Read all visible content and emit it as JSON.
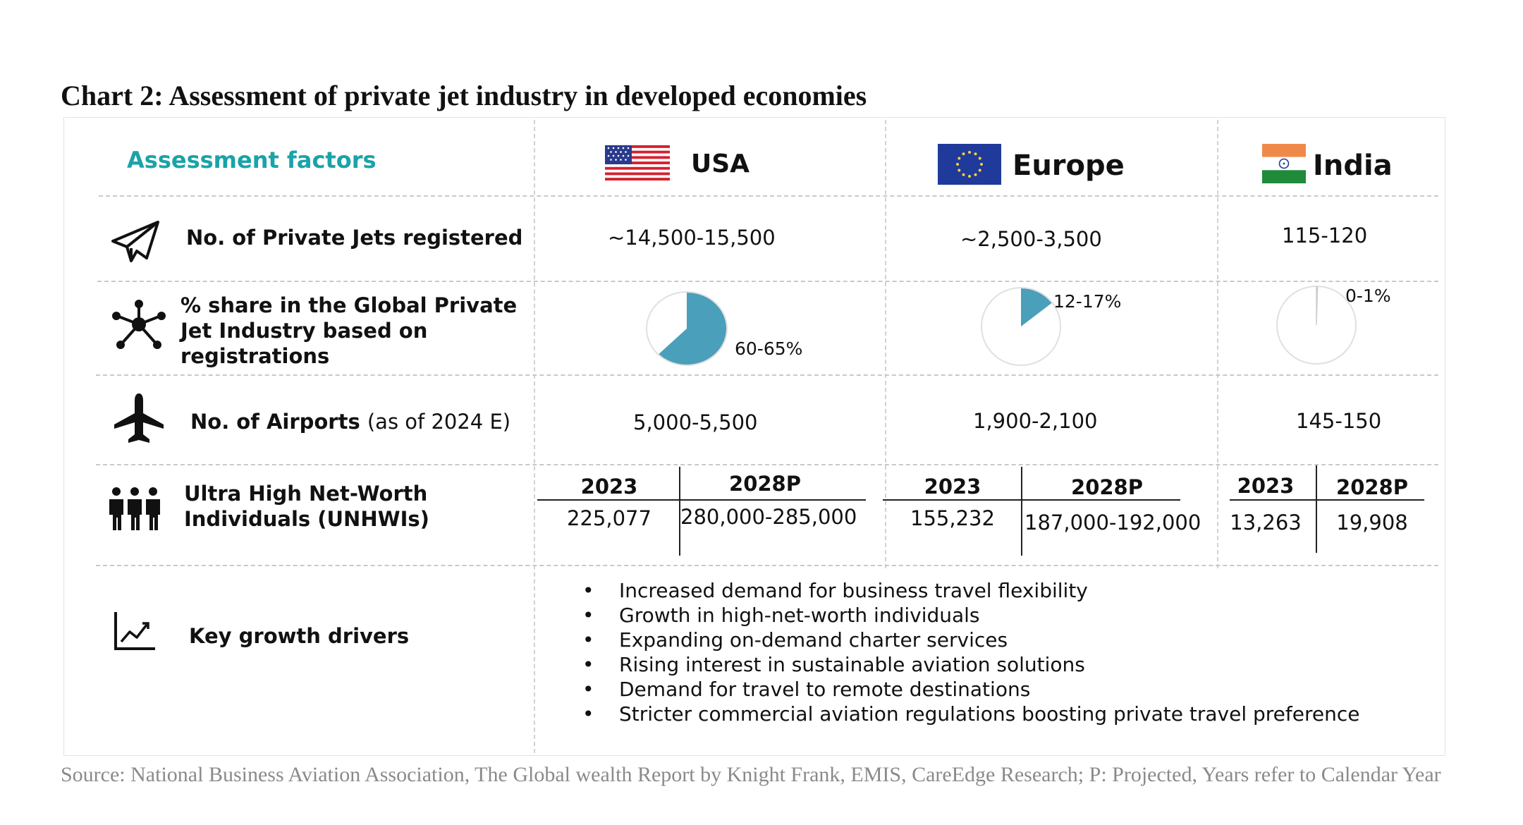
{
  "title": "Chart 2: Assessment of private jet industry in developed economies",
  "header": {
    "factors_label": "Assessment factors",
    "countries": [
      {
        "name": "USA",
        "flag": "us-flag-icon"
      },
      {
        "name": "Europe",
        "flag": "eu-flag-icon"
      },
      {
        "name": "India",
        "flag": "india-flag-icon"
      }
    ]
  },
  "rows": {
    "jets": {
      "icon": "paper-plane-icon",
      "label": "No. of Private Jets registered",
      "values": [
        "~14,500-15,500",
        "~2,500-3,500",
        "115-120"
      ]
    },
    "share": {
      "icon": "network-nodes-icon",
      "label": "% share in the Global Private Jet Industry based on registrations",
      "values": [
        "60-65%",
        "12-17%",
        "0-1%"
      ],
      "pie_fraction": [
        0.625,
        0.145,
        0.005
      ],
      "pie_color": "#4a9fba"
    },
    "airports": {
      "icon": "airplane-icon",
      "label": "No. of Airports",
      "label_note": "(as of 2024 E)",
      "values": [
        "5,000-5,500",
        "1,900-2,100",
        "145-150"
      ]
    },
    "unhwi": {
      "icon": "people-group-icon",
      "label": "Ultra High Net-Worth Individuals (UNHWIs)",
      "years": [
        "2023",
        "2028P"
      ],
      "values": [
        [
          "225,077",
          "280,000-285,000"
        ],
        [
          "155,232",
          "187,000-192,000"
        ],
        [
          "13,263",
          "19,908"
        ]
      ]
    },
    "drivers": {
      "icon": "growth-chart-icon",
      "label": "Key growth drivers",
      "items": [
        "Increased demand for business travel flexibility",
        "Growth in high-net-worth individuals",
        "Expanding on-demand charter services",
        "Rising interest in sustainable aviation solutions",
        "Demand for travel to remote destinations",
        "Stricter commercial aviation regulations boosting private travel preference"
      ]
    }
  },
  "source": "Source: National Business Aviation Association, The Global wealth Report by Knight Frank, EMIS, CareEdge Research; P: Projected, Years refer to Calendar Year",
  "colors": {
    "accent": "#1aa3a8",
    "pie": "#4a9fba",
    "pie_outline": "#e0e0e0"
  }
}
